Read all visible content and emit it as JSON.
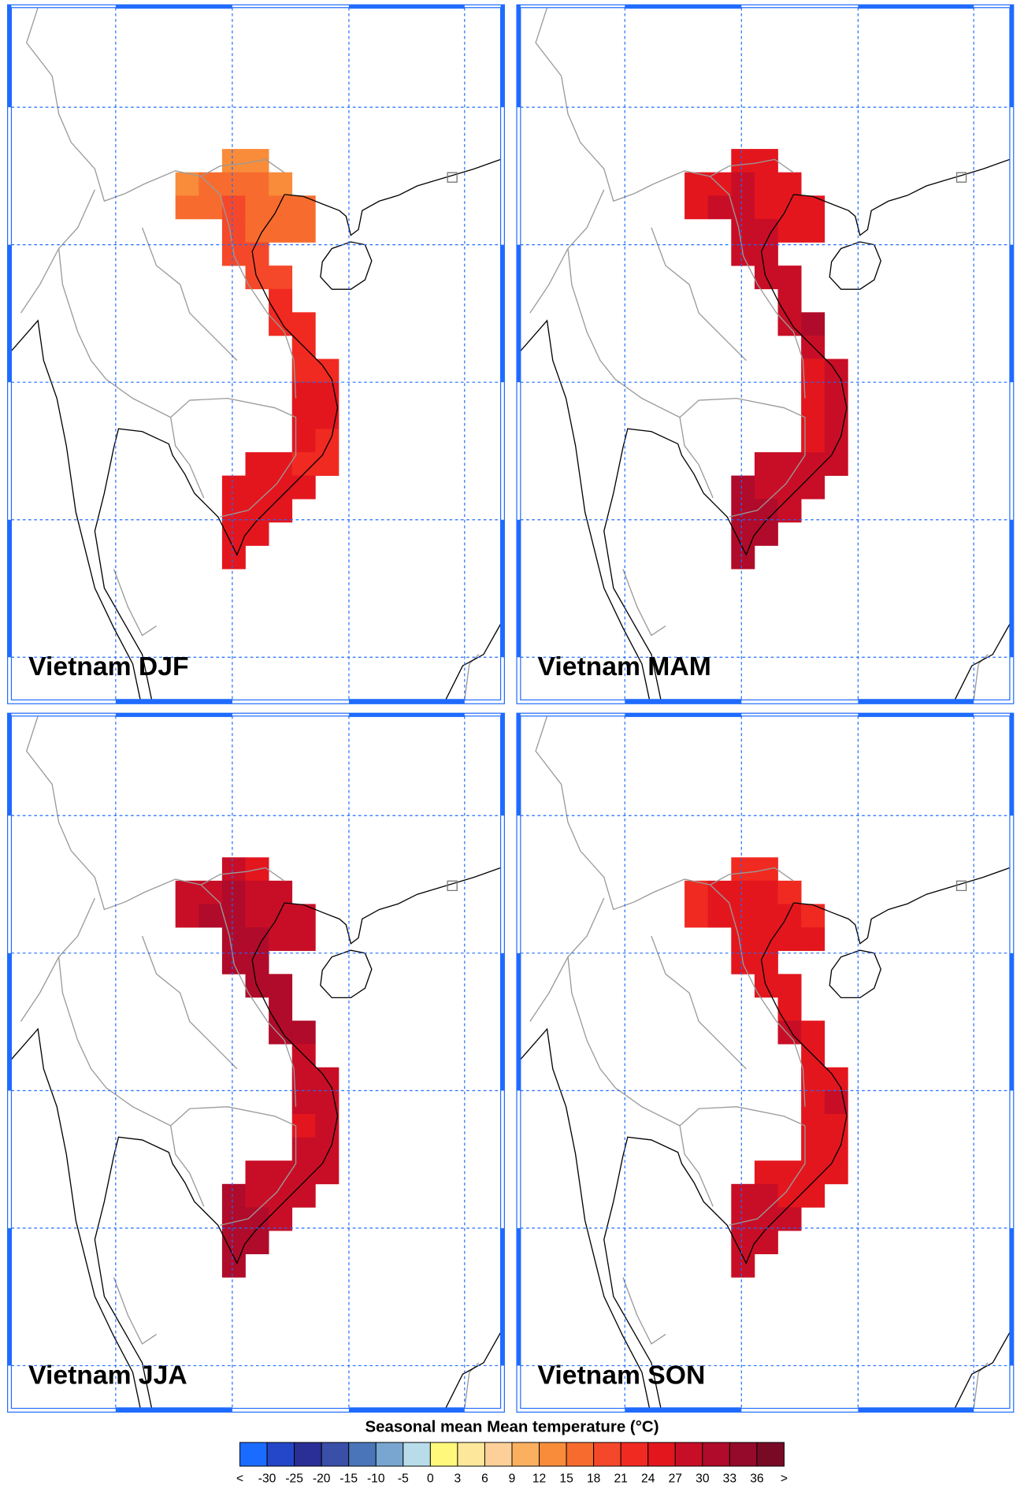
{
  "panels": [
    {
      "title": "Vietnam DJF",
      "grid": [
        [
          null,
          null,
          14,
          13,
          null,
          null,
          null
        ],
        [
          14,
          16,
          17,
          15,
          14,
          null,
          null
        ],
        [
          15,
          17,
          18,
          16,
          16,
          15,
          null
        ],
        [
          null,
          null,
          18,
          17,
          17,
          16,
          null
        ],
        [
          null,
          null,
          18,
          18,
          null,
          null,
          null
        ],
        [
          null,
          null,
          null,
          19,
          20,
          null,
          null
        ],
        [
          null,
          null,
          null,
          null,
          21,
          null,
          null
        ],
        [
          null,
          null,
          null,
          null,
          22,
          22,
          null
        ],
        [
          null,
          null,
          null,
          null,
          null,
          23,
          null
        ],
        [
          null,
          null,
          null,
          null,
          null,
          23,
          23
        ],
        [
          null,
          null,
          null,
          null,
          null,
          24,
          24
        ],
        [
          null,
          null,
          null,
          null,
          null,
          24,
          24
        ],
        [
          null,
          null,
          null,
          null,
          null,
          24,
          23
        ],
        [
          null,
          null,
          null,
          25,
          24,
          23,
          23
        ],
        [
          null,
          null,
          26,
          25,
          25,
          24,
          null
        ],
        [
          null,
          null,
          26,
          26,
          26,
          null,
          null
        ],
        [
          null,
          null,
          26,
          26,
          null,
          null,
          null
        ],
        [
          null,
          null,
          26,
          null,
          null,
          null,
          null
        ]
      ]
    },
    {
      "title": "Vietnam MAM",
      "grid": [
        [
          null,
          null,
          25,
          25,
          null,
          null,
          null
        ],
        [
          24,
          26,
          27,
          26,
          25,
          null,
          null
        ],
        [
          25,
          27,
          27,
          26,
          26,
          26,
          null
        ],
        [
          null,
          null,
          27,
          27,
          26,
          26,
          null
        ],
        [
          null,
          null,
          27,
          27,
          null,
          null,
          null
        ],
        [
          null,
          null,
          null,
          27,
          28,
          null,
          null
        ],
        [
          null,
          null,
          null,
          null,
          28,
          null,
          null
        ],
        [
          null,
          null,
          null,
          null,
          29,
          30,
          null
        ],
        [
          null,
          null,
          null,
          null,
          null,
          28,
          null
        ],
        [
          null,
          null,
          null,
          null,
          null,
          26,
          27
        ],
        [
          null,
          null,
          null,
          null,
          null,
          26,
          28
        ],
        [
          null,
          null,
          null,
          null,
          null,
          25,
          27
        ],
        [
          null,
          null,
          null,
          null,
          null,
          26,
          27
        ],
        [
          null,
          null,
          null,
          28,
          28,
          27,
          27
        ],
        [
          null,
          null,
          30,
          29,
          28,
          28,
          null
        ],
        [
          null,
          null,
          30,
          30,
          29,
          null,
          null
        ],
        [
          null,
          null,
          30,
          30,
          null,
          null,
          null
        ],
        [
          null,
          null,
          30,
          null,
          null,
          null,
          null
        ]
      ]
    },
    {
      "title": "Vietnam JJA",
      "grid": [
        [
          null,
          null,
          28,
          26,
          null,
          null,
          null
        ],
        [
          27,
          29,
          30,
          28,
          27,
          null,
          null
        ],
        [
          28,
          30,
          30,
          29,
          29,
          29,
          null
        ],
        [
          null,
          null,
          30,
          30,
          29,
          29,
          null
        ],
        [
          null,
          null,
          30,
          30,
          null,
          null,
          null
        ],
        [
          null,
          null,
          null,
          30,
          31,
          null,
          null
        ],
        [
          null,
          null,
          null,
          null,
          31,
          null,
          null
        ],
        [
          null,
          null,
          null,
          null,
          31,
          30,
          null
        ],
        [
          null,
          null,
          null,
          null,
          null,
          29,
          null
        ],
        [
          null,
          null,
          null,
          null,
          null,
          27,
          29
        ],
        [
          null,
          null,
          null,
          null,
          null,
          27,
          29
        ],
        [
          null,
          null,
          null,
          null,
          null,
          26,
          28
        ],
        [
          null,
          null,
          null,
          null,
          null,
          27,
          28
        ],
        [
          null,
          null,
          null,
          28,
          27,
          27,
          28
        ],
        [
          null,
          null,
          30,
          29,
          28,
          27,
          null
        ],
        [
          null,
          null,
          30,
          30,
          29,
          null,
          null
        ],
        [
          null,
          null,
          30,
          30,
          null,
          null,
          null
        ],
        [
          null,
          null,
          30,
          null,
          null,
          null,
          null
        ]
      ]
    },
    {
      "title": "Vietnam SON",
      "grid": [
        [
          null,
          null,
          23,
          22,
          null,
          null,
          null
        ],
        [
          23,
          24,
          25,
          24,
          23,
          null,
          null
        ],
        [
          23,
          25,
          25,
          24,
          24,
          23,
          null
        ],
        [
          null,
          null,
          25,
          25,
          24,
          24,
          null
        ],
        [
          null,
          null,
          25,
          25,
          null,
          null,
          null
        ],
        [
          null,
          null,
          null,
          26,
          26,
          null,
          null
        ],
        [
          null,
          null,
          null,
          null,
          26,
          null,
          null
        ],
        [
          null,
          null,
          null,
          null,
          27,
          26,
          null
        ],
        [
          null,
          null,
          null,
          null,
          null,
          26,
          null
        ],
        [
          null,
          null,
          null,
          null,
          null,
          25,
          26
        ],
        [
          null,
          null,
          null,
          null,
          null,
          25,
          27
        ],
        [
          null,
          null,
          null,
          null,
          null,
          24,
          26
        ],
        [
          null,
          null,
          null,
          null,
          null,
          25,
          26
        ],
        [
          null,
          null,
          null,
          26,
          25,
          25,
          26
        ],
        [
          null,
          null,
          28,
          27,
          26,
          26,
          null
        ],
        [
          null,
          null,
          29,
          28,
          27,
          null,
          null
        ],
        [
          null,
          null,
          29,
          28,
          null,
          null,
          null
        ],
        [
          null,
          null,
          29,
          null,
          null,
          null,
          null
        ]
      ]
    }
  ],
  "colorbar": {
    "title": "Seasonal mean Mean temperature (°C)",
    "under_label": "<",
    "over_label": ">",
    "levels": [
      -30,
      -25,
      -20,
      -15,
      -10,
      -5,
      0,
      3,
      6,
      9,
      12,
      15,
      18,
      21,
      24,
      27,
      30,
      33,
      36
    ],
    "colors": [
      "#1a6bff",
      "#2347c8",
      "#2a2f96",
      "#3a4fa8",
      "#4a75b8",
      "#78a6d0",
      "#b8dcea",
      "#fff87a",
      "#fde79a",
      "#fdd09a",
      "#fbb060",
      "#f98c3a",
      "#f76c2e",
      "#f5482a",
      "#f02a20",
      "#e3161e",
      "#c80e26",
      "#b00b2a",
      "#950a2a",
      "#780a26"
    ]
  }
}
